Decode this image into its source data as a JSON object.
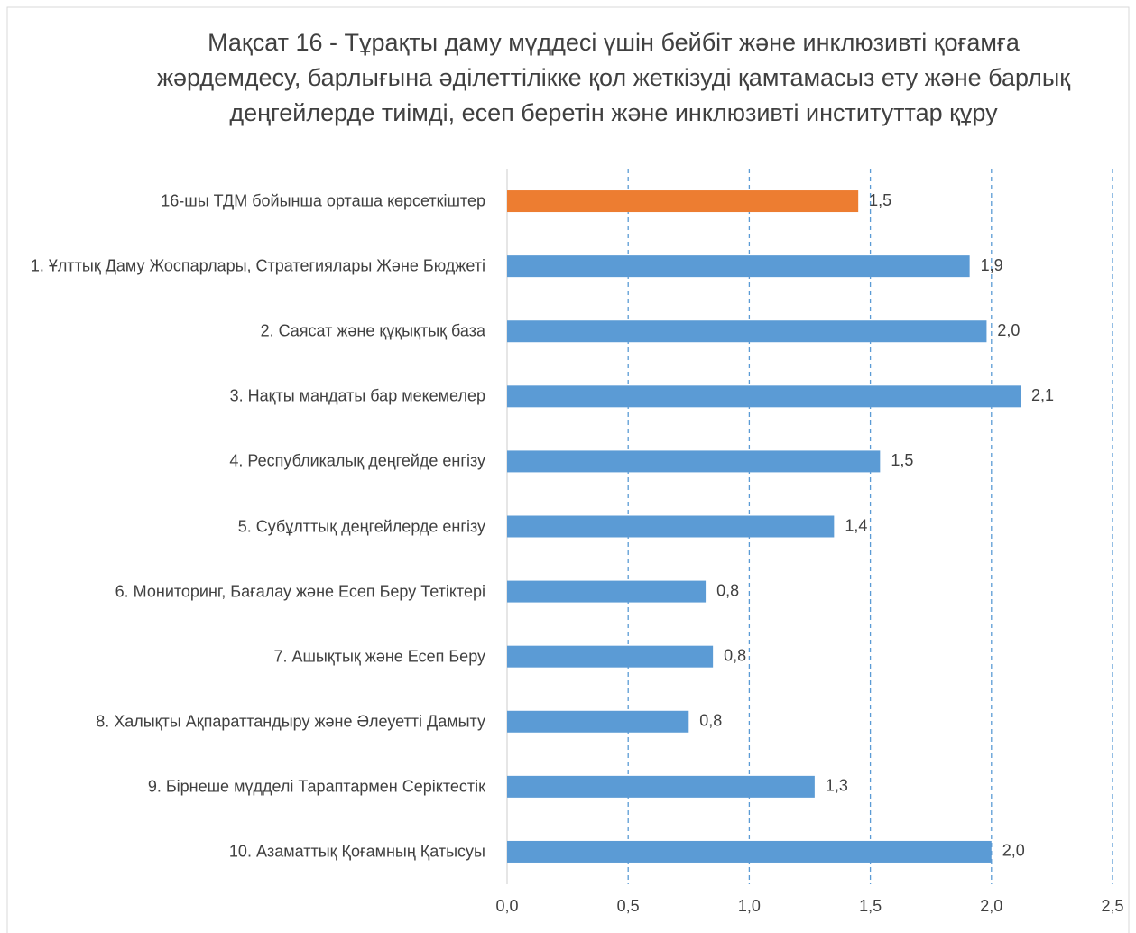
{
  "chart_data": {
    "type": "barh",
    "title": "Мақсат 16 - Тұрақты даму мүддесі үшін бейбіт және инклюзивті қоғамға жәрдемдесу, барлығына әділеттілікке қол жеткізуді қамтамасыз ету және барлық деңгейлерде тиімді, есеп беретін және инклюзивті институттар құру",
    "categories": [
      "16-шы ТДМ бойынша орташа көрсеткіштер",
      "1. Ұлттық Даму Жоспарлары, Стратегиялары Және Бюджеті",
      "2. Саясат және құқықтық база",
      "3. Нақты мандаты бар мекемелер",
      "4. Республикалық деңгейде енгізу",
      "5. Субұлттық деңгейлерде енгізу",
      "6. Мониторинг, Бағалау және Есеп Беру Тетіктері",
      "7. Ашықтық және Есеп Беру",
      "8. Халықты Ақпараттандыру және Әлеуетті Дамыту",
      "9. Бірнеше мүдделі Тараптармен Серіктестік",
      "10. Азаматтық Қоғамның Қатысуы"
    ],
    "values": [
      1.45,
      1.91,
      1.98,
      2.12,
      1.54,
      1.35,
      0.82,
      0.85,
      0.75,
      1.27,
      2.0
    ],
    "value_labels": [
      "1,5",
      "1,9",
      "2,0",
      "2,1",
      "1,5",
      "1,4",
      "0,8",
      "0,8",
      "0,8",
      "1,3",
      "2,0"
    ],
    "colors": [
      "#ed7d31",
      "#5b9bd5",
      "#5b9bd5",
      "#5b9bd5",
      "#5b9bd5",
      "#5b9bd5",
      "#5b9bd5",
      "#5b9bd5",
      "#5b9bd5",
      "#5b9bd5",
      "#5b9bd5"
    ],
    "xlim": [
      0,
      2.5
    ],
    "xticks": [
      {
        "value": 0,
        "label": "0,0"
      },
      {
        "value": 0.5,
        "label": "0,5"
      },
      {
        "value": 1,
        "label": "1,0"
      },
      {
        "value": 1.5,
        "label": "1,5"
      },
      {
        "value": 2,
        "label": "2,0"
      },
      {
        "value": 2.5,
        "label": "2,5"
      }
    ],
    "grid": true
  }
}
